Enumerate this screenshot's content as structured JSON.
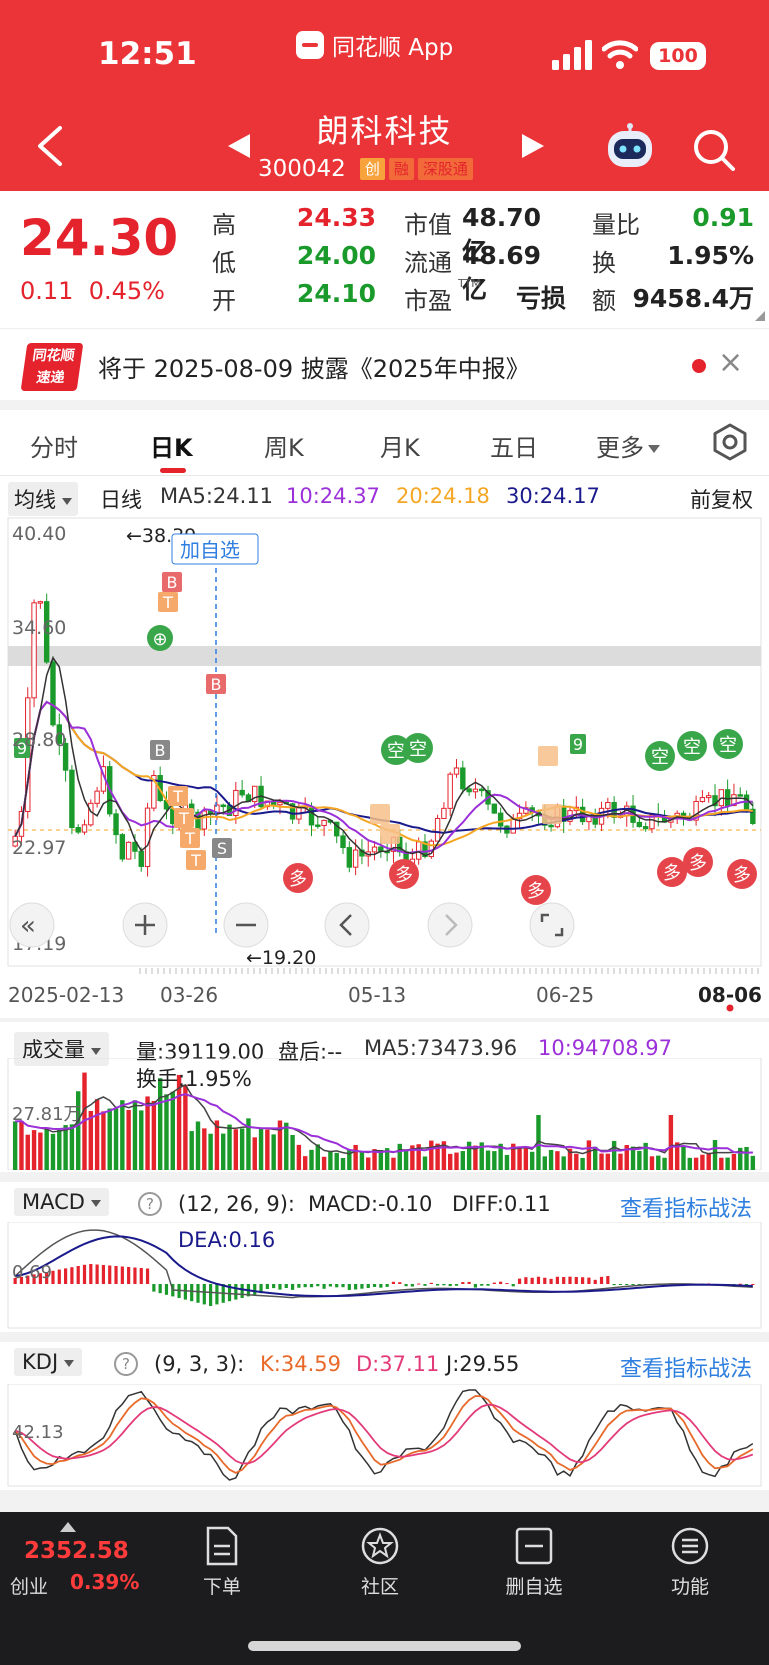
{
  "status_bar": {
    "time": "12:51",
    "app": "同花顺 App",
    "battery": "100"
  },
  "header": {
    "name": "朗科科技",
    "code": "300042",
    "tags": [
      "创",
      "融",
      "深股通"
    ]
  },
  "quote": {
    "price": "24.30",
    "change": "0.11",
    "change_pct": "0.45%",
    "rows": [
      {
        "l1": "高",
        "v1": "24.33",
        "l2": "市值",
        "v2": "48.70亿",
        "l3": "量比",
        "v3": "0.91"
      },
      {
        "l1": "低",
        "v1": "24.00",
        "l2": "流通",
        "v2": "48.69亿",
        "l3": "换",
        "v3": "1.95%"
      },
      {
        "l1": "开",
        "v1": "24.10",
        "l2": "市盈",
        "v2": "亏损",
        "l3": "额",
        "v3": "9458.4万"
      }
    ],
    "pe_sup": "TTM"
  },
  "notice": {
    "logo_line1": "同花顺",
    "logo_line2": "速递",
    "text": "将于 2025-08-09 披露《2025年中报》"
  },
  "tabs": [
    "分时",
    "日K",
    "周K",
    "月K",
    "五日",
    "更多"
  ],
  "ma_bar": {
    "select": "均线",
    "period": "日线",
    "ma5": "MA5:24.11",
    "ma10": "10:24.37",
    "ma20": "20:24.18",
    "ma30": "30:24.17",
    "adjust": "前复权"
  },
  "kchart": {
    "y_labels": [
      "40.40",
      "34.60",
      "28.80",
      "22.97",
      "17.19"
    ],
    "high_label": "←38.39",
    "low_label": "←19.20",
    "add_watch": "加自选",
    "x_labels": [
      "2025-02-13",
      "03-26",
      "05-13",
      "06-25",
      "08-06"
    ],
    "markers": {
      "buy": "B",
      "sell": "S",
      "t": "T",
      "short": "空",
      "long": "多",
      "nine": "9"
    }
  },
  "volume": {
    "select": "成交量",
    "vol": "量:39119.00",
    "after": "盘后:--",
    "ma5": "MA5:73473.96",
    "ma10": "10:94708.97",
    "turnover": "换手:1.95%",
    "y_label": "27.81万"
  },
  "macd": {
    "select": "MACD",
    "params": "(12, 26, 9):",
    "macd": "MACD:-0.10",
    "diff": "DIFF:0.11",
    "dea": "DEA:0.16",
    "link": "查看指标战法",
    "y_label": "0.69"
  },
  "kdj": {
    "select": "KDJ",
    "params": "(9, 3, 3):",
    "k": "K:34.59",
    "d": "D:37.11",
    "j": "J:29.55",
    "link": "查看指标战法",
    "y_label": "42.13"
  },
  "bottom": {
    "index_value": "2352.58",
    "index_name": "创业",
    "index_pct": "0.39%",
    "nav": [
      "下单",
      "社区",
      "删自选",
      "功能"
    ]
  },
  "colors": {
    "header": "#ea3437",
    "up": "#e4232d",
    "down": "#1a9a2a",
    "ma5": "#333333",
    "ma10": "#9b30d9",
    "ma20": "#f5a623",
    "ma30": "#1a1a8c"
  }
}
